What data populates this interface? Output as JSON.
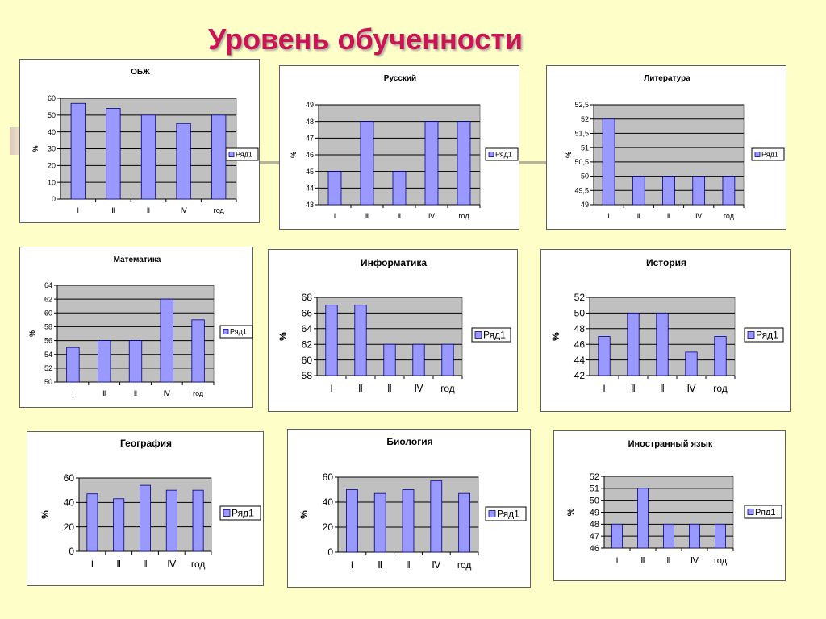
{
  "page": {
    "title": "Уровень обученности"
  },
  "colors": {
    "bar_fill": "#9999ff",
    "bar_stroke": "#000080",
    "plot_bg": "#c0c0c0",
    "title_color": "#cc1455",
    "background": "#fefec8"
  },
  "chart_data": [
    {
      "type": "bar",
      "title": "ОБЖ",
      "ylabel": "%",
      "legend": "Ряд1",
      "legend_position": "right",
      "categories": [
        "I",
        "II",
        "II",
        "IV",
        "год"
      ],
      "values": [
        57,
        54,
        50,
        45,
        50
      ],
      "ylim": [
        0,
        60
      ],
      "yticks": [
        "0",
        "10",
        "20",
        "30",
        "40",
        "50",
        "60"
      ],
      "grid": true
    },
    {
      "type": "bar",
      "title": "Русский",
      "ylabel": "%",
      "legend": "Ряд1",
      "legend_position": "right",
      "categories": [
        "I",
        "II",
        "II",
        "IV",
        "год"
      ],
      "values": [
        45,
        48,
        45,
        48,
        48
      ],
      "ylim": [
        43,
        49
      ],
      "yticks": [
        "43",
        "44",
        "45",
        "46",
        "47",
        "48",
        "49"
      ],
      "grid": true
    },
    {
      "type": "bar",
      "title": "Литература",
      "ylabel": "%",
      "legend": "Ряд1",
      "legend_position": "right",
      "categories": [
        "I",
        "II",
        "II",
        "IV",
        "год"
      ],
      "values": [
        52,
        50,
        50,
        50,
        50
      ],
      "ylim": [
        49,
        52.5
      ],
      "yticks": [
        "49",
        "49,5",
        "50",
        "50,5",
        "51",
        "51,5",
        "52",
        "52,5"
      ],
      "grid": true
    },
    {
      "type": "bar",
      "title": "Математика",
      "ylabel": "%",
      "legend": "Ряд1",
      "legend_position": "right",
      "categories": [
        "I",
        "II",
        "II",
        "IV",
        "год"
      ],
      "values": [
        55,
        56,
        56,
        62,
        59
      ],
      "ylim": [
        50,
        64
      ],
      "yticks": [
        "50",
        "52",
        "54",
        "56",
        "58",
        "60",
        "62",
        "64"
      ],
      "grid": true
    },
    {
      "type": "bar",
      "title": "Информатика",
      "ylabel": "%",
      "legend": "Ряд1",
      "legend_position": "right",
      "categories": [
        "I",
        "II",
        "II",
        "IV",
        "год"
      ],
      "values": [
        67,
        67,
        62,
        62,
        62
      ],
      "ylim": [
        58,
        68
      ],
      "yticks": [
        "58",
        "60",
        "62",
        "64",
        "66",
        "68"
      ],
      "grid": true
    },
    {
      "type": "bar",
      "title": "История",
      "ylabel": "%",
      "legend": "Ряд1",
      "legend_position": "right",
      "categories": [
        "I",
        "II",
        "II",
        "IV",
        "год"
      ],
      "values": [
        47,
        50,
        50,
        45,
        47
      ],
      "ylim": [
        42,
        52
      ],
      "yticks": [
        "42",
        "44",
        "46",
        "48",
        "50",
        "52"
      ],
      "grid": true
    },
    {
      "type": "bar",
      "title": "География",
      "ylabel": "%",
      "legend": "Ряд1",
      "legend_position": "right",
      "categories": [
        "I",
        "II",
        "II",
        "IV",
        "год"
      ],
      "values": [
        47,
        43,
        54,
        50,
        50
      ],
      "ylim": [
        0,
        60
      ],
      "yticks": [
        "0",
        "20",
        "40",
        "60"
      ],
      "grid": true
    },
    {
      "type": "bar",
      "title": "Биология",
      "ylabel": "%",
      "legend": "Ряд1",
      "legend_position": "right",
      "categories": [
        "I",
        "II",
        "II",
        "IV",
        "год"
      ],
      "values": [
        50,
        47,
        50,
        57,
        47
      ],
      "ylim": [
        0,
        60
      ],
      "yticks": [
        "0",
        "20",
        "40",
        "60"
      ],
      "grid": true
    },
    {
      "type": "bar",
      "title": "Иностранный язык",
      "ylabel": "%",
      "legend": "Ряд1",
      "legend_position": "right",
      "categories": [
        "I",
        "II",
        "II",
        "IV",
        "год"
      ],
      "values": [
        48,
        51,
        48,
        48,
        48
      ],
      "ylim": [
        46,
        52
      ],
      "yticks": [
        "46",
        "47",
        "48",
        "49",
        "50",
        "51",
        "52"
      ],
      "grid": true
    }
  ]
}
